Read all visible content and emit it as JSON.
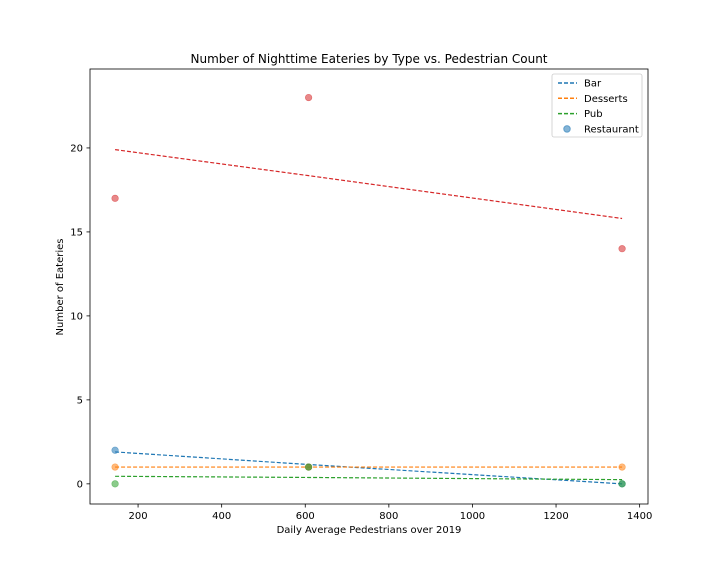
{
  "chart_data": {
    "type": "scatter",
    "title": "Number of Nighttime Eateries by Type vs. Pedestrian Count",
    "xlabel": "Daily Average Pedestrians over 2019",
    "ylabel": "Number of Eateries",
    "xlim": [
      85,
      1420
    ],
    "ylim": [
      -1.2,
      24.7
    ],
    "xticks": [
      200,
      400,
      600,
      800,
      1000,
      1200,
      1400
    ],
    "yticks": [
      0,
      5,
      10,
      15,
      20
    ],
    "grid": false,
    "legend_position": "top-right",
    "legend": [
      "Bar",
      "Desserts",
      "Pub",
      "Restaurant"
    ],
    "x": [
      145,
      608,
      1358
    ],
    "series": [
      {
        "name": "Bar",
        "color": "#1f77b4",
        "points": [
          2,
          1,
          0
        ],
        "trend": [
          1.9,
          1.15,
          0.0
        ]
      },
      {
        "name": "Desserts",
        "color": "#ff7f0e",
        "points": [
          1,
          1,
          1
        ],
        "trend": [
          1.0,
          1.0,
          1.0
        ]
      },
      {
        "name": "Pub",
        "color": "#2ca02c",
        "points": [
          0,
          1,
          0
        ],
        "trend": [
          0.45,
          0.38,
          0.25
        ]
      },
      {
        "name": "Restaurant",
        "color": "#d62728",
        "points": [
          17,
          23,
          14
        ],
        "trend": [
          19.9,
          18.35,
          15.8
        ]
      }
    ]
  }
}
